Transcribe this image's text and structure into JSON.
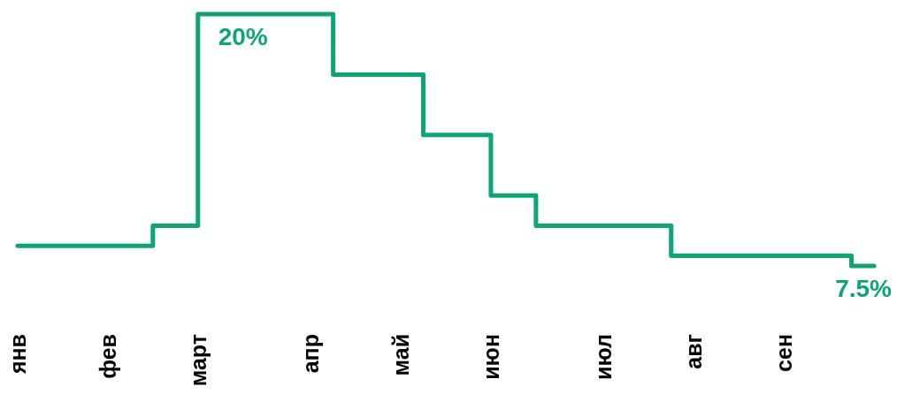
{
  "chart_data": {
    "type": "step",
    "color": "#0aa673",
    "categories": [
      "янв",
      null,
      null,
      null,
      "фев",
      null,
      null,
      null,
      "март",
      null,
      null,
      null,
      null,
      "апр",
      null,
      null,
      null,
      "май",
      null,
      null,
      null,
      "июн",
      null,
      null,
      null,
      null,
      "июл",
      null,
      null,
      null,
      "авг",
      null,
      null,
      null,
      "сен",
      null,
      null,
      null,
      null
    ],
    "values": [
      8.5,
      8.5,
      8.5,
      8.5,
      8.5,
      8.5,
      9.5,
      9.5,
      20,
      20,
      20,
      20,
      20,
      20,
      17,
      17,
      17,
      17,
      14,
      14,
      14,
      11,
      11,
      9.5,
      9.5,
      9.5,
      9.5,
      9.5,
      9.5,
      8,
      8,
      8,
      8,
      8,
      8,
      8,
      8,
      7.5,
      7.5
    ],
    "value_labels": [
      null,
      null,
      null,
      null,
      null,
      null,
      null,
      null,
      null,
      null,
      "20%",
      null,
      null,
      null,
      null,
      null,
      null,
      null,
      null,
      null,
      null,
      null,
      null,
      null,
      null,
      null,
      null,
      null,
      null,
      null,
      null,
      null,
      null,
      null,
      null,
      null,
      null,
      null,
      "7.5%"
    ],
    "tick_labels": "x"
  }
}
